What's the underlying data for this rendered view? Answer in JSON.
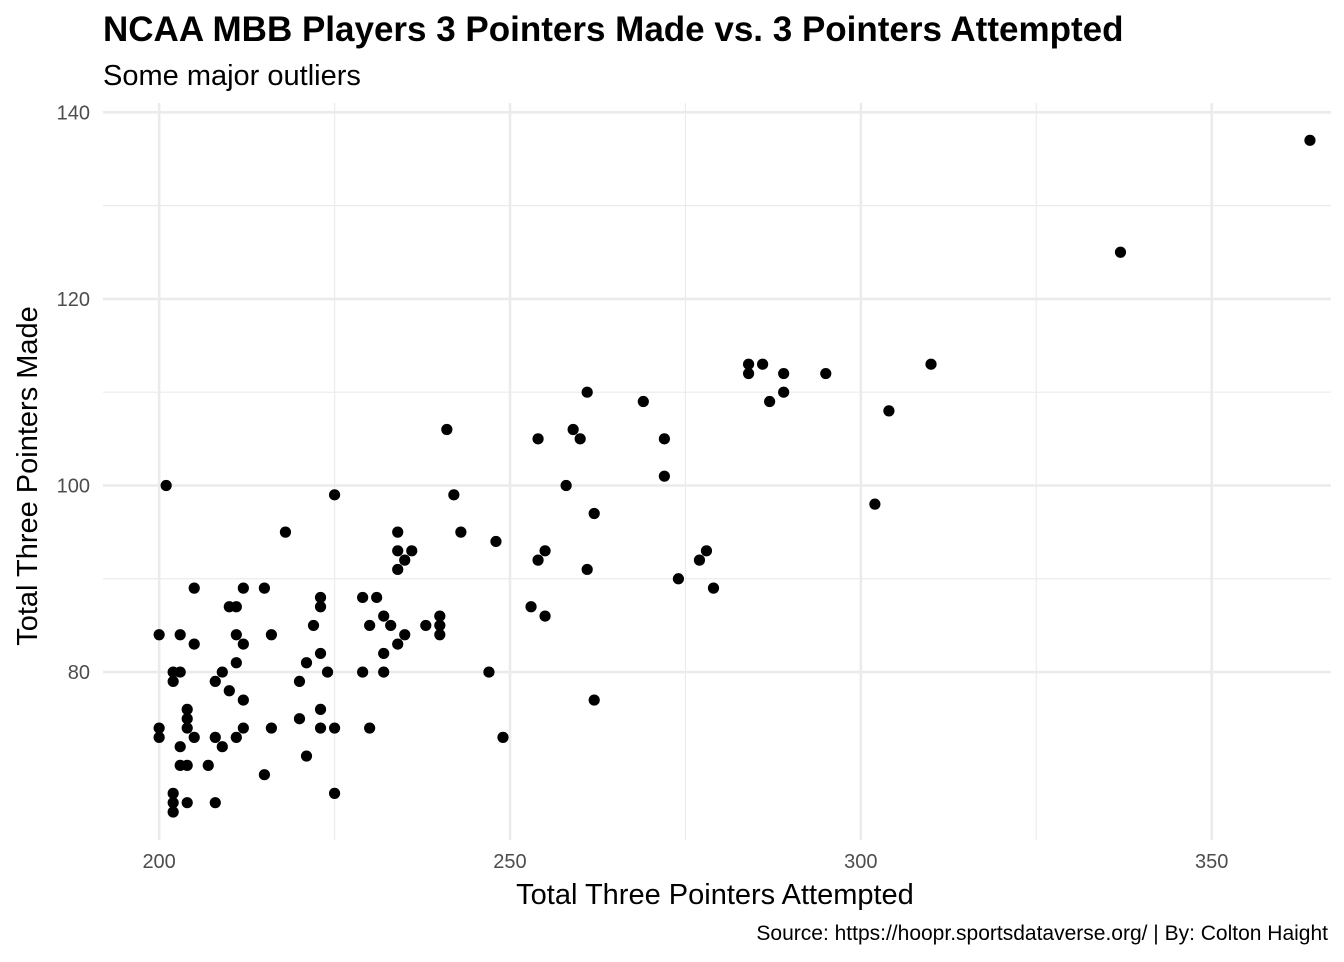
{
  "chart_data": {
    "type": "scatter",
    "title": "NCAA MBB Players 3 Pointers Made vs. 3 Pointers Attempted",
    "subtitle": "Some major outliers",
    "caption": "Source: https://hoopr.sportsdataverse.org/ | By: Colton Haight",
    "xlabel": "Total Three Pointers Attempted",
    "ylabel": "Total Three Pointers Made",
    "xlim": [
      192,
      367
    ],
    "ylim": [
      62,
      141
    ],
    "xticks": [
      200,
      250,
      300,
      350
    ],
    "yticks": [
      80,
      100,
      120,
      140
    ],
    "grid": true,
    "point_color": "#000000",
    "grid_color": "#ebebeb",
    "points": [
      [
        364,
        137
      ],
      [
        337,
        125
      ],
      [
        310,
        113
      ],
      [
        304,
        108
      ],
      [
        302,
        98
      ],
      [
        295,
        112
      ],
      [
        289,
        112
      ],
      [
        289,
        110
      ],
      [
        287,
        109
      ],
      [
        286,
        113
      ],
      [
        284,
        113
      ],
      [
        284,
        112
      ],
      [
        279,
        89
      ],
      [
        278,
        93
      ],
      [
        277,
        92
      ],
      [
        274,
        90
      ],
      [
        272,
        105
      ],
      [
        272,
        101
      ],
      [
        269,
        109
      ],
      [
        262,
        97
      ],
      [
        262,
        77
      ],
      [
        261,
        110
      ],
      [
        261,
        91
      ],
      [
        260,
        105
      ],
      [
        259,
        106
      ],
      [
        258,
        100
      ],
      [
        255,
        93
      ],
      [
        255,
        86
      ],
      [
        254,
        105
      ],
      [
        254,
        92
      ],
      [
        253,
        87
      ],
      [
        249,
        73
      ],
      [
        248,
        94
      ],
      [
        247,
        80
      ],
      [
        243,
        95
      ],
      [
        242,
        99
      ],
      [
        241,
        106
      ],
      [
        240,
        86
      ],
      [
        240,
        85
      ],
      [
        240,
        84
      ],
      [
        238,
        85
      ],
      [
        236,
        93
      ],
      [
        235,
        92
      ],
      [
        235,
        84
      ],
      [
        234,
        95
      ],
      [
        234,
        93
      ],
      [
        234,
        91
      ],
      [
        234,
        83
      ],
      [
        233,
        85
      ],
      [
        232,
        86
      ],
      [
        232,
        82
      ],
      [
        232,
        80
      ],
      [
        231,
        88
      ],
      [
        230,
        85
      ],
      [
        230,
        74
      ],
      [
        229,
        88
      ],
      [
        229,
        80
      ],
      [
        225,
        99
      ],
      [
        225,
        74
      ],
      [
        225,
        67
      ],
      [
        224,
        80
      ],
      [
        223,
        88
      ],
      [
        223,
        87
      ],
      [
        223,
        82
      ],
      [
        223,
        76
      ],
      [
        223,
        74
      ],
      [
        222,
        85
      ],
      [
        221,
        81
      ],
      [
        221,
        71
      ],
      [
        220,
        79
      ],
      [
        220,
        75
      ],
      [
        218,
        95
      ],
      [
        216,
        84
      ],
      [
        216,
        74
      ],
      [
        215,
        89
      ],
      [
        215,
        69
      ],
      [
        212,
        89
      ],
      [
        212,
        83
      ],
      [
        212,
        77
      ],
      [
        212,
        74
      ],
      [
        211,
        87
      ],
      [
        211,
        84
      ],
      [
        211,
        81
      ],
      [
        211,
        73
      ],
      [
        210,
        87
      ],
      [
        210,
        78
      ],
      [
        209,
        80
      ],
      [
        209,
        72
      ],
      [
        208,
        79
      ],
      [
        208,
        73
      ],
      [
        208,
        66
      ],
      [
        207,
        70
      ],
      [
        205,
        89
      ],
      [
        205,
        83
      ],
      [
        205,
        73
      ],
      [
        204,
        76
      ],
      [
        204,
        75
      ],
      [
        204,
        74
      ],
      [
        204,
        70
      ],
      [
        204,
        66
      ],
      [
        203,
        84
      ],
      [
        203,
        80
      ],
      [
        203,
        72
      ],
      [
        203,
        70
      ],
      [
        202,
        80
      ],
      [
        202,
        79
      ],
      [
        202,
        67
      ],
      [
        202,
        66
      ],
      [
        202,
        65
      ],
      [
        201,
        100
      ],
      [
        200,
        84
      ],
      [
        200,
        74
      ],
      [
        200,
        73
      ]
    ]
  }
}
